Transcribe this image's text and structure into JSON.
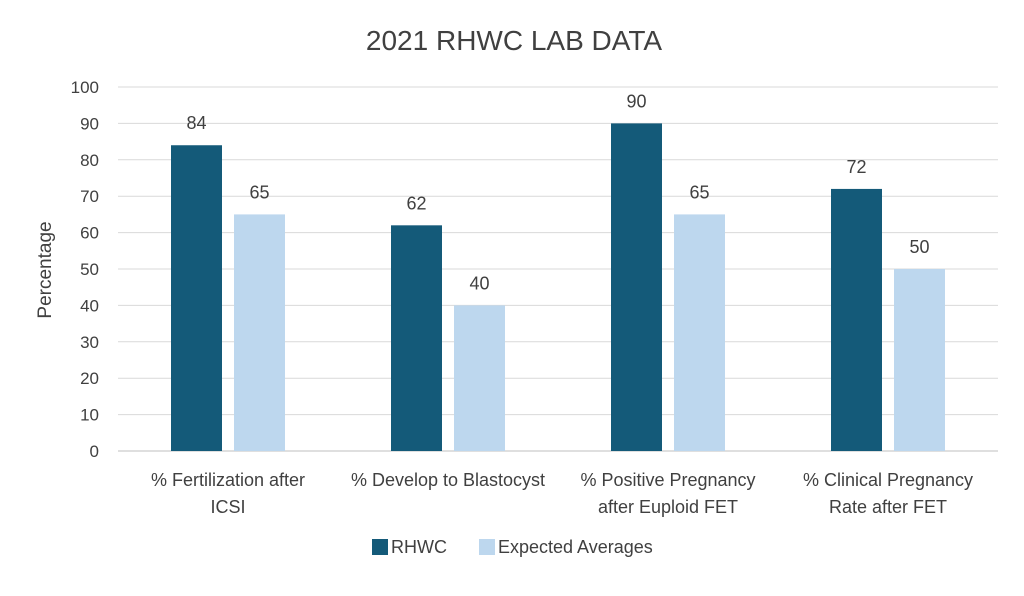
{
  "chart_data": {
    "type": "bar",
    "title": "2021 RHWC LAB DATA",
    "xlabel": "",
    "ylabel": "Percentage",
    "ylim": [
      0,
      100
    ],
    "yticks": [
      0,
      10,
      20,
      30,
      40,
      50,
      60,
      70,
      80,
      90,
      100
    ],
    "grid": true,
    "legend_position": "bottom",
    "categories": [
      [
        "% Fertilization after",
        "ICSI"
      ],
      [
        "% Develop to Blastocyst"
      ],
      [
        "% Positive Pregnancy",
        "after Euploid FET"
      ],
      [
        "% Clinical Pregnancy",
        "Rate after FET"
      ]
    ],
    "series": [
      {
        "name": "RHWC",
        "color": "#145a79",
        "values": [
          84,
          62,
          90,
          72
        ]
      },
      {
        "name": "Expected Averages",
        "color": "#bdd7ee",
        "values": [
          65,
          40,
          65,
          50
        ]
      }
    ]
  }
}
